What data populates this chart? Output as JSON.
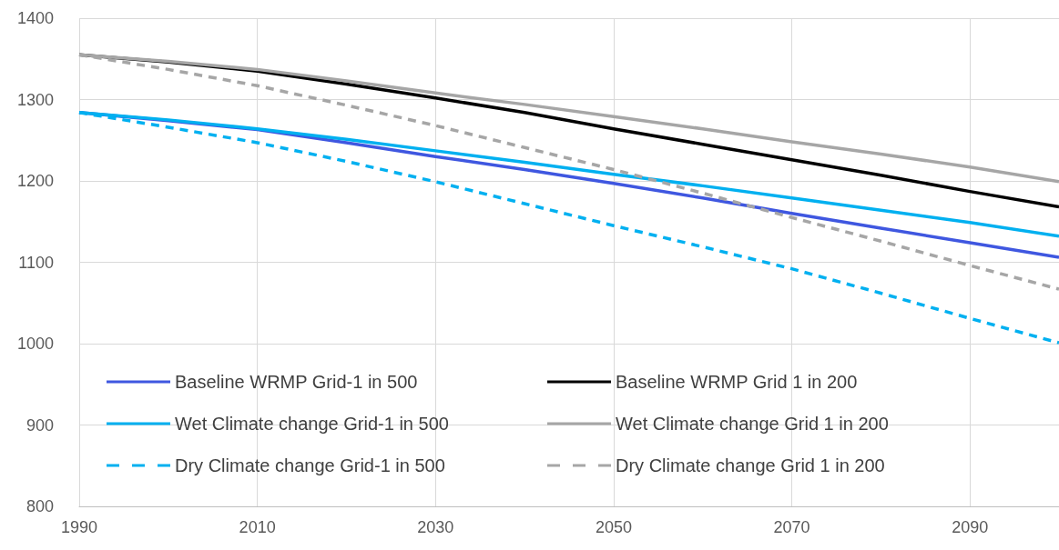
{
  "chart_data": {
    "type": "line",
    "x": [
      1990,
      2000,
      2010,
      2020,
      2030,
      2040,
      2050,
      2060,
      2070,
      2080,
      2090,
      2100
    ],
    "xlim": [
      1990,
      2100
    ],
    "xticks": [
      1990,
      2010,
      2030,
      2050,
      2070,
      2090
    ],
    "ylim": [
      800,
      1400
    ],
    "yticks": [
      800,
      900,
      1000,
      1100,
      1200,
      1300,
      1400
    ],
    "grid": true,
    "legend": "bottom",
    "line_style": "solid",
    "marker": "none",
    "series": [
      {
        "name": "Baseline WRMP Grid-1 in 500",
        "color": "#3f57e0",
        "values": [
          1284,
          1274,
          1263,
          1247,
          1230,
          1214,
          1197,
          1179,
          1160,
          1142,
          1124,
          1106
        ]
      },
      {
        "name": "Baseline WRMP Grid 1 in 200",
        "color": "#000000",
        "values": [
          1355,
          1346,
          1335,
          1319,
          1302,
          1284,
          1264,
          1245,
          1226,
          1207,
          1187,
          1168
        ]
      },
      {
        "name": "Wet Climate change Grid-1 in 500",
        "color": "#00b0f0",
        "values": [
          1284,
          1275,
          1264,
          1251,
          1237,
          1223,
          1208,
          1194,
          1179,
          1164,
          1149,
          1132
        ]
      },
      {
        "name": "Wet Climate change Grid 1 in 200",
        "color": "#a6a6a6",
        "values": [
          1355,
          1347,
          1337,
          1323,
          1308,
          1294,
          1279,
          1264,
          1248,
          1233,
          1217,
          1199
        ]
      },
      {
        "name": "Dry Climate change Grid-1 in 500",
        "color": "#00b0f0",
        "line_style": "dashed",
        "values": [
          1284,
          1266,
          1247,
          1224,
          1199,
          1172,
          1145,
          1119,
          1092,
          1062,
          1031,
          1001
        ]
      },
      {
        "name": "Dry Climate change Grid 1 in 200",
        "color": "#a6a6a6",
        "line_style": "dashed",
        "values": [
          1355,
          1337,
          1317,
          1293,
          1268,
          1241,
          1214,
          1185,
          1155,
          1126,
          1096,
          1067
        ]
      }
    ]
  }
}
